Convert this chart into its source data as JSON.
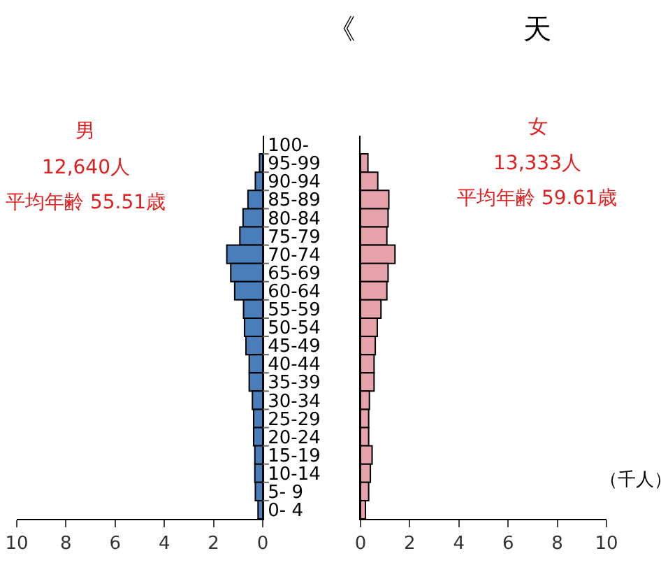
{
  "chart_data": [
    {
      "type": "bar",
      "orientation": "horizontal",
      "annotations": [
        "男",
        "12,640人",
        "平均年齢 55.51歳"
      ],
      "categories": [
        "100-",
        "95-99",
        "90-94",
        "85-89",
        "80-84",
        "75-79",
        "70-74",
        "65-69",
        "60-64",
        "55-59",
        "50-54",
        "45-49",
        "40-44",
        "35-39",
        "30-34",
        "25-29",
        "20-24",
        "15-19",
        "10-14",
        "5- 9",
        "0- 4"
      ],
      "values": [
        null,
        0.13,
        0.3,
        0.6,
        0.8,
        0.93,
        1.46,
        1.3,
        1.14,
        0.78,
        0.74,
        0.68,
        0.55,
        0.55,
        0.42,
        0.37,
        0.37,
        0.32,
        0.32,
        0.3,
        0.19
      ],
      "color": "#4a7ebb",
      "xlim": [
        10,
        0
      ],
      "xticks": [
        10,
        8,
        6,
        4,
        2,
        0
      ],
      "grid": false
    },
    {
      "type": "bar",
      "orientation": "horizontal",
      "title": "《　　　　　　天",
      "annotations": [
        "女",
        "13,333人",
        "平均年齢 59.61歳",
        "（千人）"
      ],
      "categories": [
        null,
        null,
        null,
        null,
        null,
        null,
        null,
        null,
        null,
        null,
        null,
        null,
        null,
        null,
        null,
        null,
        null,
        null,
        null,
        null,
        null
      ],
      "values": [
        null,
        0.3,
        0.7,
        1.15,
        1.12,
        1.07,
        1.4,
        1.12,
        1.07,
        0.83,
        0.68,
        0.6,
        0.55,
        0.55,
        0.36,
        0.33,
        0.33,
        0.47,
        0.4,
        0.33,
        0.2
      ],
      "color": "#e6a3ab",
      "xlim": [
        0,
        10
      ],
      "xticks": [
        0,
        2,
        4,
        6,
        8,
        10
      ],
      "grid": false,
      "tick_labels": "x"
    }
  ]
}
